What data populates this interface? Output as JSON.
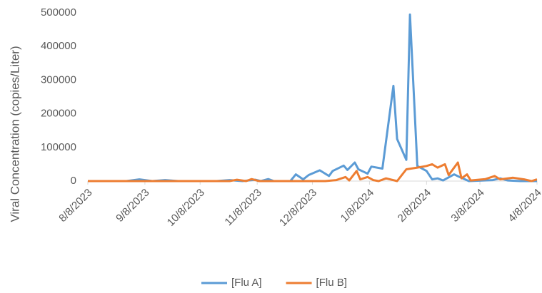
{
  "chart_data": {
    "type": "line",
    "y_label": "Viral Concentration (copies/Liter)",
    "xlim": [
      "8/8/2023",
      "4/8/2024"
    ],
    "xticks": [
      "8/8/2023",
      "9/8/2023",
      "10/8/2023",
      "11/8/2023",
      "12/8/2023",
      "1/8/2024",
      "2/8/2024",
      "3/8/2024",
      "4/8/2024"
    ],
    "ylim": [
      0,
      500000
    ],
    "yticks": [
      0,
      100000,
      200000,
      300000,
      400000,
      500000
    ],
    "grid": false,
    "legend": "bottom",
    "series": [
      {
        "name": "[Flu A]",
        "color": "#5b9bd5",
        "x": [
          "8/8/2023",
          "8/29/2023",
          "9/5/2023",
          "9/12/2023",
          "9/19/2023",
          "9/26/2023",
          "10/17/2023",
          "10/24/2023",
          "10/31/2023",
          "11/7/2023",
          "11/10/2023",
          "11/14/2023",
          "11/17/2023",
          "11/26/2023",
          "11/29/2023",
          "12/3/2023",
          "12/6/2023",
          "12/12/2023",
          "12/17/2023",
          "12/19/2023",
          "12/25/2023",
          "12/27/2023",
          "12/31/2023",
          "1/2/2024",
          "1/7/2024",
          "1/9/2024",
          "1/15/2024",
          "1/21/2024",
          "1/23/2024",
          "1/28/2024",
          "1/30/2024",
          "2/3/2024",
          "2/8/2024",
          "2/11/2024",
          "2/14/2024",
          "2/17/2024",
          "2/23/2024",
          "2/26/2024",
          "3/2/2024",
          "3/15/2024",
          "3/19/2024",
          "3/23/2024",
          "3/30/2024",
          "4/8/2024"
        ],
        "values": [
          0,
          0,
          5000,
          0,
          3000,
          0,
          0,
          3000,
          0,
          4000,
          0,
          6000,
          0,
          0,
          20000,
          5000,
          18000,
          32000,
          15000,
          30000,
          46000,
          33000,
          55000,
          35000,
          22000,
          43000,
          37000,
          283000,
          125000,
          63000,
          495000,
          45000,
          30000,
          5000,
          8000,
          2000,
          20000,
          12000,
          0,
          3000,
          8000,
          2000,
          0,
          0
        ]
      },
      {
        "name": "[Flu B]",
        "color": "#ed7d31",
        "x": [
          "8/8/2023",
          "10/24/2023",
          "10/28/2023",
          "11/2/2023",
          "11/5/2023",
          "11/9/2023",
          "12/15/2023",
          "12/21/2023",
          "12/26/2023",
          "12/28/2023",
          "1/1/2024",
          "1/3/2024",
          "1/7/2024",
          "1/10/2024",
          "1/13/2024",
          "1/17/2024",
          "1/23/2024",
          "1/28/2024",
          "2/3/2024",
          "2/8/2024",
          "2/11/2024",
          "2/14/2024",
          "2/18/2024",
          "2/20/2024",
          "2/25/2024",
          "2/27/2024",
          "3/1/2024",
          "3/3/2024",
          "3/11/2024",
          "3/16/2024",
          "3/19/2024",
          "3/26/2024",
          "4/1/2024",
          "4/5/2024",
          "4/8/2024"
        ],
        "values": [
          0,
          0,
          4000,
          0,
          6000,
          0,
          0,
          3000,
          12000,
          2000,
          30000,
          5000,
          12000,
          3000,
          0,
          8000,
          0,
          35000,
          40000,
          45000,
          50000,
          40000,
          50000,
          18000,
          55000,
          8000,
          20000,
          2000,
          6000,
          15000,
          5000,
          10000,
          5000,
          0,
          5000
        ]
      }
    ]
  }
}
